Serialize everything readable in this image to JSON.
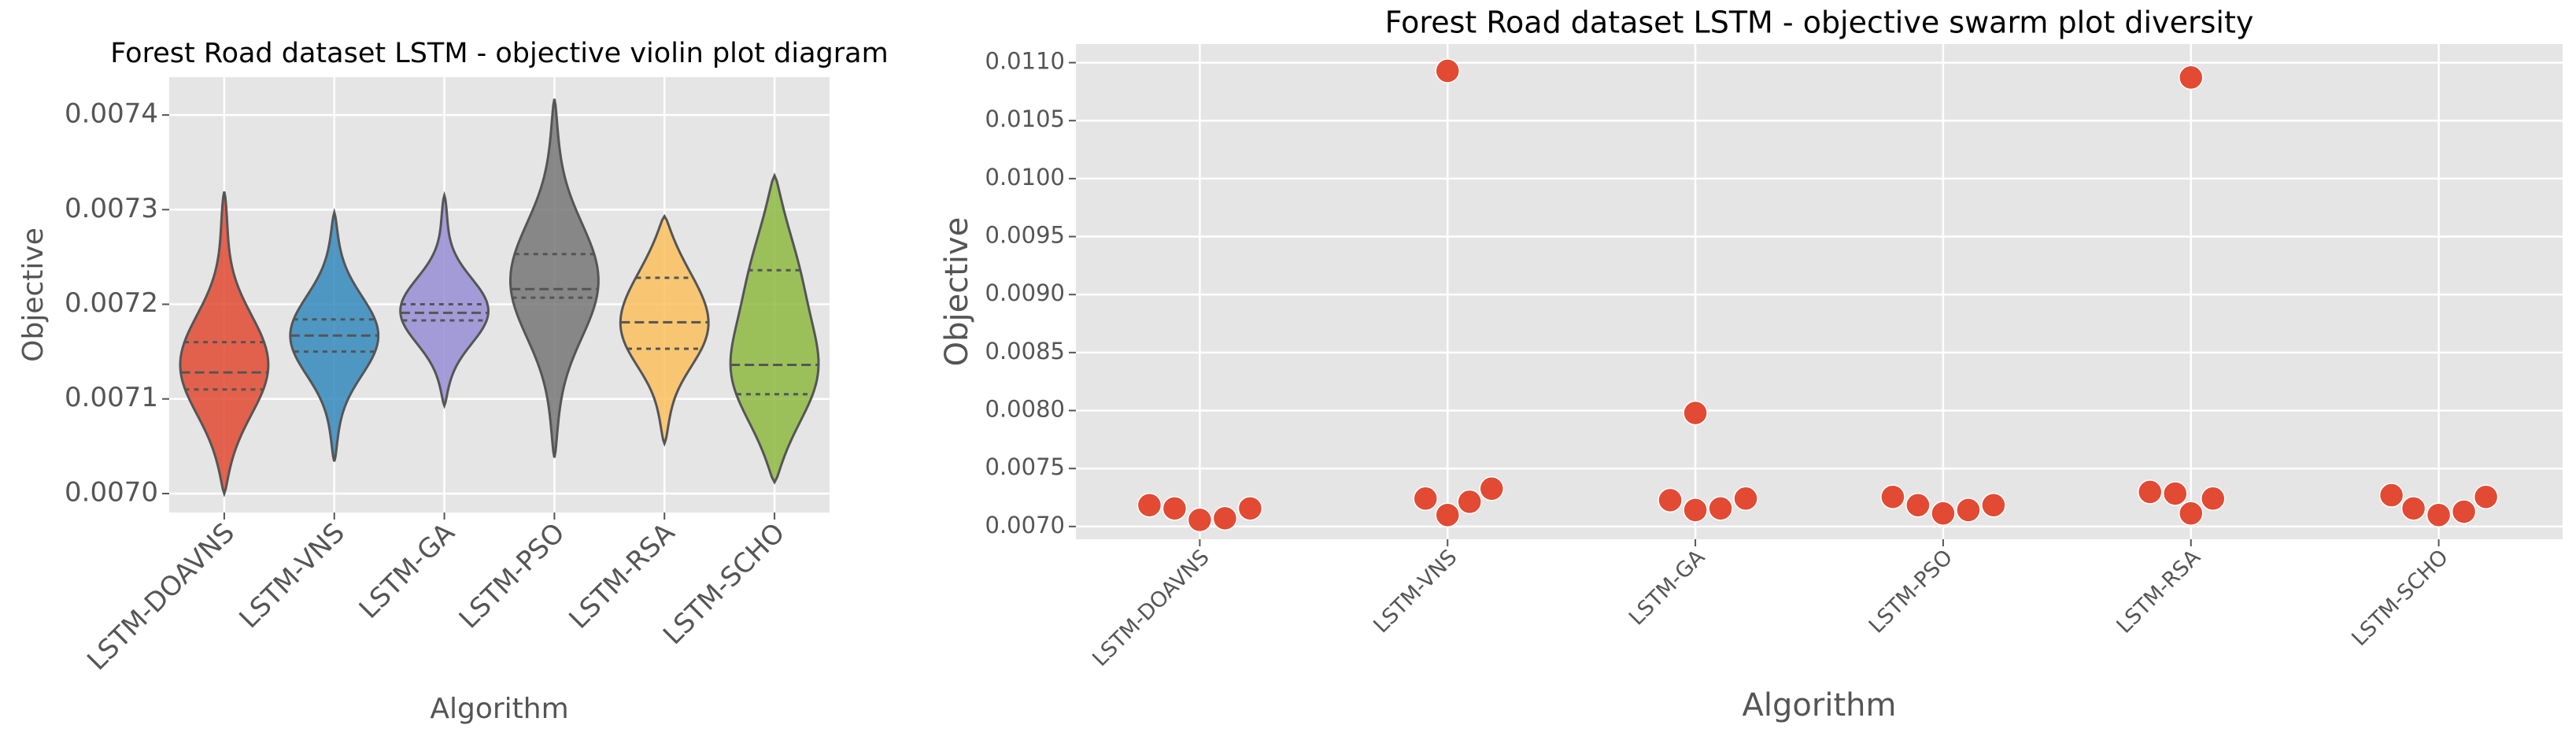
{
  "chart_data": [
    {
      "type": "violin",
      "title": "Forest Road dataset LSTM -  objective violin plot diagram",
      "xlabel": "Algorithm",
      "ylabel": "Objective",
      "categories": [
        "LSTM-DOAVNS",
        "LSTM-VNS",
        "LSTM-GA",
        "LSTM-PSO",
        "LSTM-RSA",
        "LSTM-SCHO"
      ],
      "colors": [
        "#E24A33",
        "#348ABD",
        "#988ED5",
        "#777777",
        "#FBC15E",
        "#8EBA42"
      ],
      "stats": [
        {
          "min": 0.007,
          "q1": 0.00711,
          "median": 0.007128,
          "q3": 0.00716,
          "max": 0.007319
        },
        {
          "min": 0.007034,
          "q1": 0.00715,
          "median": 0.007167,
          "q3": 0.007184,
          "max": 0.007297
        },
        {
          "min": 0.007093,
          "q1": 0.007183,
          "median": 0.007191,
          "q3": 0.0072,
          "max": 0.007315
        },
        {
          "min": 0.007038,
          "q1": 0.007207,
          "median": 0.007216,
          "q3": 0.007253,
          "max": 0.007417
        },
        {
          "min": 0.007053,
          "q1": 0.007153,
          "median": 0.007181,
          "q3": 0.007228,
          "max": 0.007293
        },
        {
          "min": 0.007012,
          "q1": 0.007105,
          "median": 0.007136,
          "q3": 0.007236,
          "max": 0.007336
        }
      ],
      "ylim": [
        0.00698,
        0.00744
      ],
      "yticks": [
        {
          "value": 0.007,
          "label": "0.0070"
        },
        0.0071,
        0.0072,
        0.0073,
        0.0074
      ],
      "grid": true
    },
    {
      "type": "swarm",
      "title": "Forest Road dataset LSTM -  objective swarm plot diversity",
      "xlabel": "Algorithm",
      "ylabel": "Objective",
      "categories": [
        "LSTM-DOAVNS",
        "LSTM-VNS",
        "LSTM-GA",
        "LSTM-PSO",
        "LSTM-RSA",
        "LSTM-SCHO"
      ],
      "color": "#E24A33",
      "values": [
        [
          0.007184,
          0.007071,
          0.007057,
          0.007156,
          0.007156
        ],
        [
          0.010929,
          0.007326,
          0.007241,
          0.007099,
          0.007213
        ],
        [
          0.007979,
          0.007156,
          0.007142,
          0.007227,
          0.007241
        ],
        [
          0.007255,
          0.007142,
          0.007113,
          0.007184,
          0.007184
        ],
        [
          0.010872,
          0.007298,
          0.007241,
          0.007113,
          0.007284
        ],
        [
          0.007255,
          0.00727,
          0.007128,
          0.007099,
          0.007156
        ]
      ],
      "ylim": [
        0.00689,
        0.01116
      ],
      "yticks": [
        {
          "value": 0.007,
          "label": "0.0070"
        },
        0.0075,
        {
          "value": 0.008,
          "label": "0.0080"
        },
        0.0085,
        {
          "value": 0.009,
          "label": "0.0090"
        },
        0.0095,
        {
          "value": 0.01,
          "label": "0.0100"
        },
        0.0105,
        {
          "value": 0.011,
          "label": "0.0110"
        }
      ],
      "grid": true
    }
  ]
}
